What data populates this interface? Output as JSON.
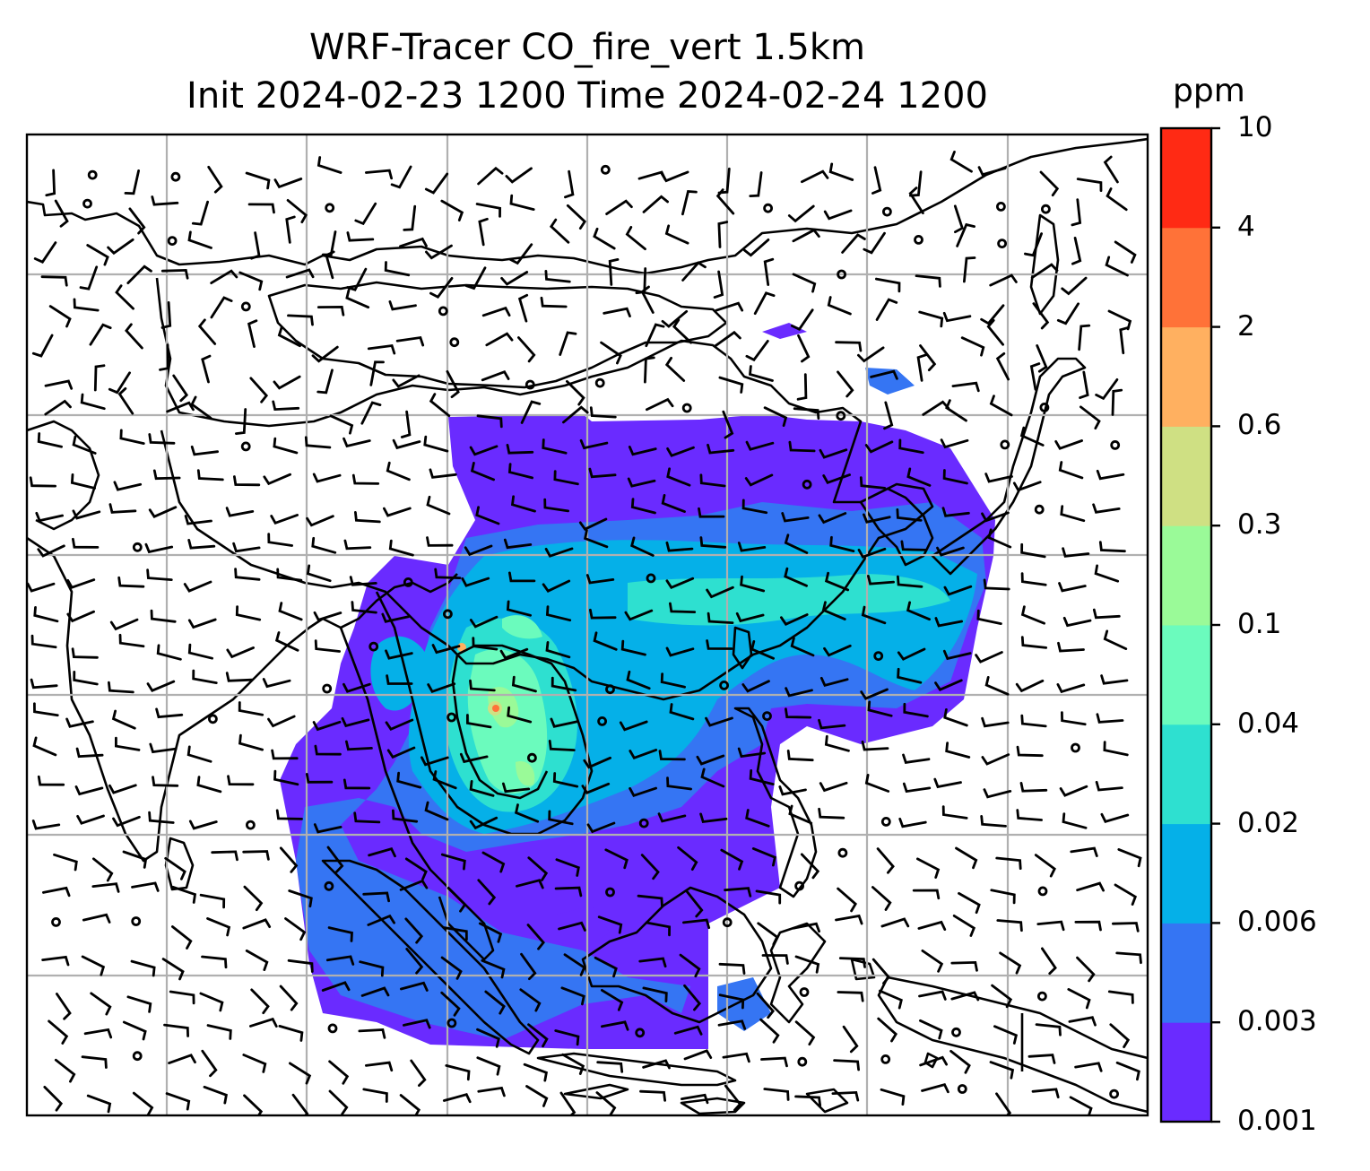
{
  "title": {
    "line1": "WRF-Tracer CO_fire_vert 1.5km",
    "line2": "Init 2024-02-23 1200 Time 2024-02-24 1200"
  },
  "colorbar": {
    "unit": "ppm",
    "levels": [
      "0.001",
      "0.003",
      "0.006",
      "0.02",
      "0.04",
      "0.1",
      "0.3",
      "0.6",
      "2",
      "4",
      "10"
    ],
    "colors": [
      "#6a2bff",
      "#3575f3",
      "#05b0e8",
      "#2ee0d0",
      "#6bfbbd",
      "#9afa98",
      "#cfe083",
      "#ffb060",
      "#ff7238",
      "#ff2a14"
    ]
  },
  "map": {
    "features": [
      "coastlines",
      "country-borders",
      "lat-lon-gridlines",
      "wind-barbs",
      "co-fire-tracer-field"
    ],
    "gridline_color": "#b0b0b0"
  }
}
